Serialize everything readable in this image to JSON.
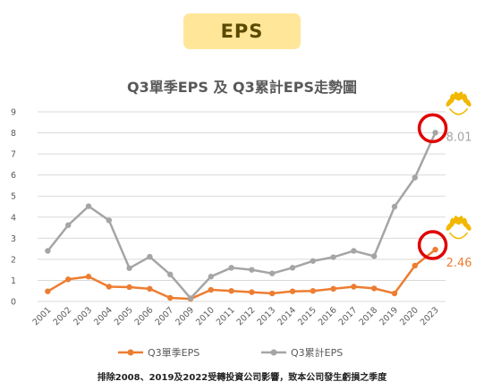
{
  "badge_label": "EPS",
  "footnote": "排除2008、2019及2022受轉投資公司影響，致本公司發生虧損之季度",
  "colors": {
    "q3": "#ed7d31",
    "cumulative": "#a5a5a5",
    "highlight_circle": "#e00000",
    "laurel": "#f2b800",
    "grid": "#d9d9d9"
  },
  "icons": [
    "laurel-wreath-icon",
    "laurel-wreath-icon"
  ],
  "chart_data": {
    "type": "line",
    "title": "Q3單季EPS 及 Q3累計EPS走勢圖",
    "categories": [
      "2001",
      "2002",
      "2003",
      "2004",
      "2005",
      "2006",
      "2007",
      "2009",
      "2010",
      "2011",
      "2012",
      "2013",
      "2014",
      "2015",
      "2016",
      "2017",
      "2018",
      "2019",
      "2020",
      "2023"
    ],
    "ylim": [
      0,
      9
    ],
    "yticks": [
      0,
      1,
      2,
      3,
      4,
      5,
      6,
      7,
      8,
      9
    ],
    "grid": "horizontal",
    "legend_position": "bottom",
    "series": [
      {
        "name": "Q3單季EPS",
        "color": "#ed7d31",
        "values": [
          0.48,
          1.05,
          1.18,
          0.7,
          0.68,
          0.6,
          0.17,
          0.12,
          0.55,
          0.5,
          0.44,
          0.38,
          0.48,
          0.5,
          0.6,
          0.7,
          0.62,
          0.38,
          1.7,
          2.46
        ],
        "labeled_point": {
          "index": 19,
          "text": "2.46"
        }
      },
      {
        "name": "Q3累計EPS",
        "color": "#a5a5a5",
        "values": [
          2.4,
          3.62,
          4.52,
          3.85,
          1.58,
          2.12,
          1.28,
          0.15,
          1.18,
          1.6,
          1.5,
          1.33,
          1.6,
          1.92,
          2.1,
          2.4,
          2.15,
          4.5,
          5.88,
          8.01
        ],
        "labeled_point": {
          "index": 19,
          "text": "8.01"
        }
      }
    ]
  }
}
